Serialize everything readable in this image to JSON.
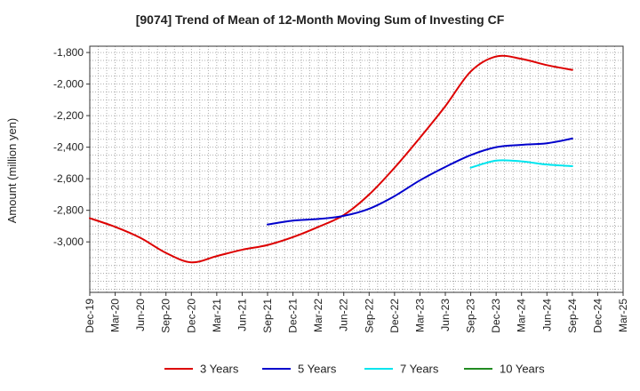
{
  "chart_data": {
    "type": "line",
    "title": "[9074]  Trend of Mean of 12-Month Moving Sum of Investing CF",
    "xlabel": "",
    "ylabel": "Amount (million yen)",
    "ylim": [
      -3320,
      -1760
    ],
    "yticks": [
      -1800,
      -2000,
      -2200,
      -2400,
      -2600,
      -2800,
      -3000
    ],
    "ytick_labels": [
      "-1,800",
      "-2,000",
      "-2,200",
      "-2,400",
      "-2,600",
      "-2,800",
      "-3,000"
    ],
    "x_tick_labels": [
      "Dec-19",
      "Mar-20",
      "Jun-20",
      "Sep-20",
      "Dec-20",
      "Mar-21",
      "Jun-21",
      "Sep-21",
      "Dec-21",
      "Mar-22",
      "Jun-22",
      "Sep-22",
      "Dec-22",
      "Mar-23",
      "Jun-23",
      "Sep-23",
      "Dec-23",
      "Mar-24",
      "Jun-24",
      "Sep-24",
      "Dec-24",
      "Mar-25"
    ],
    "grid": true,
    "legend_position": "bottom",
    "series": [
      {
        "name": "3 Years",
        "color": "#dd0000",
        "points": [
          [
            0,
            -2850
          ],
          [
            1,
            -2905
          ],
          [
            2,
            -2975
          ],
          [
            3,
            -3070
          ],
          [
            4,
            -3130
          ],
          [
            5,
            -3090
          ],
          [
            6,
            -3050
          ],
          [
            7,
            -3020
          ],
          [
            8,
            -2970
          ],
          [
            9,
            -2905
          ],
          [
            10,
            -2830
          ],
          [
            11,
            -2700
          ],
          [
            12,
            -2530
          ],
          [
            13,
            -2340
          ],
          [
            14,
            -2140
          ],
          [
            15,
            -1920
          ],
          [
            16,
            -1825
          ],
          [
            17,
            -1840
          ],
          [
            18,
            -1880
          ],
          [
            19,
            -1910
          ]
        ]
      },
      {
        "name": "5 Years",
        "color": "#0000cc",
        "points": [
          [
            7,
            -2890
          ],
          [
            8,
            -2865
          ],
          [
            9,
            -2855
          ],
          [
            10,
            -2835
          ],
          [
            11,
            -2790
          ],
          [
            12,
            -2710
          ],
          [
            13,
            -2610
          ],
          [
            14,
            -2525
          ],
          [
            15,
            -2450
          ],
          [
            16,
            -2400
          ],
          [
            17,
            -2385
          ],
          [
            18,
            -2375
          ],
          [
            19,
            -2345
          ]
        ]
      },
      {
        "name": "7 Years",
        "color": "#00e5ee",
        "points": [
          [
            15,
            -2530
          ],
          [
            16,
            -2485
          ],
          [
            17,
            -2490
          ],
          [
            18,
            -2510
          ],
          [
            19,
            -2520
          ]
        ]
      },
      {
        "name": "10 Years",
        "color": "#228b22",
        "points": []
      }
    ]
  }
}
